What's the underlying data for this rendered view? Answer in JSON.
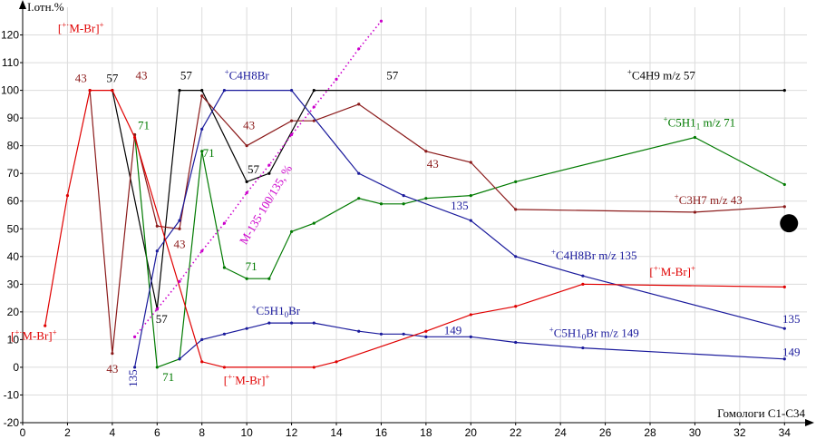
{
  "chart_data": {
    "type": "line",
    "ylabel": "I.отн.%",
    "xlabel": "Гомологи C1-C34",
    "xlim": [
      0,
      35
    ],
    "ylim": [
      -20,
      130
    ],
    "xticks": [
      0,
      2,
      4,
      6,
      8,
      10,
      12,
      14,
      16,
      18,
      20,
      22,
      24,
      26,
      28,
      30,
      32,
      34
    ],
    "yticks": [
      -20,
      -10,
      0,
      10,
      20,
      30,
      40,
      50,
      60,
      70,
      80,
      90,
      100,
      110,
      120
    ],
    "grid": true,
    "series": [
      {
        "name": "C4H9 m/z 57",
        "color": "#000000",
        "points": [
          [
            4,
            100
          ],
          [
            6,
            21
          ],
          [
            7,
            100
          ],
          [
            8,
            100
          ],
          [
            10,
            67
          ],
          [
            11,
            70
          ],
          [
            13,
            100
          ],
          [
            34,
            100
          ]
        ]
      },
      {
        "name": "C5H11 m/z 71",
        "color": "#007a00",
        "points": [
          [
            5,
            84
          ],
          [
            6,
            0
          ],
          [
            7,
            3
          ],
          [
            8,
            78
          ],
          [
            9,
            36
          ],
          [
            10,
            32
          ],
          [
            11,
            32
          ],
          [
            12,
            49
          ],
          [
            13,
            52
          ],
          [
            15,
            61
          ],
          [
            16,
            59
          ],
          [
            17,
            59
          ],
          [
            18,
            61
          ],
          [
            20,
            62
          ],
          [
            22,
            67
          ],
          [
            30,
            83
          ],
          [
            34,
            66
          ]
        ]
      },
      {
        "name": "C3H7 m/z 43",
        "color": "#8b1a1a",
        "points": [
          [
            3,
            100
          ],
          [
            4,
            5
          ],
          [
            5,
            84
          ],
          [
            6,
            51
          ],
          [
            7,
            50
          ],
          [
            8,
            98
          ],
          [
            10,
            80
          ],
          [
            12,
            89
          ],
          [
            13,
            89
          ],
          [
            15,
            95
          ],
          [
            18,
            78
          ],
          [
            20,
            74
          ],
          [
            22,
            57
          ],
          [
            30,
            56
          ],
          [
            34,
            58
          ]
        ]
      },
      {
        "name": "C4H8Br m/z 135",
        "color": "#1a1a9c",
        "points": [
          [
            5,
            0
          ],
          [
            6,
            42
          ],
          [
            7,
            53
          ],
          [
            8,
            86
          ],
          [
            9,
            100
          ],
          [
            12,
            100
          ],
          [
            15,
            70
          ],
          [
            17,
            62
          ],
          [
            20,
            53
          ],
          [
            22,
            40
          ],
          [
            25,
            33
          ],
          [
            34,
            14
          ]
        ]
      },
      {
        "name": "C5H10Br m/z 149",
        "color": "#1a1a9c",
        "points": [
          [
            7,
            3
          ],
          [
            8,
            10
          ],
          [
            9,
            12
          ],
          [
            10,
            14
          ],
          [
            11,
            16
          ],
          [
            12,
            16
          ],
          [
            13,
            16
          ],
          [
            15,
            13
          ],
          [
            16,
            12
          ],
          [
            17,
            12
          ],
          [
            18,
            11
          ],
          [
            20,
            11
          ],
          [
            22,
            9
          ],
          [
            25,
            7
          ],
          [
            34,
            3
          ]
        ]
      },
      {
        "name": "[M-Br]+",
        "color": "#e00000",
        "points": [
          [
            1,
            15
          ],
          [
            2,
            62
          ],
          [
            3,
            100
          ],
          [
            4,
            100
          ],
          [
            5,
            83
          ],
          [
            8,
            2
          ],
          [
            9,
            0
          ],
          [
            13,
            0
          ],
          [
            14,
            2
          ],
          [
            18,
            13
          ],
          [
            20,
            19
          ],
          [
            22,
            22
          ],
          [
            25,
            30
          ],
          [
            34,
            29
          ]
        ]
      },
      {
        "name": "M-135·100/135, %",
        "color": "#cc00cc",
        "dashed": true,
        "points": [
          [
            5,
            11
          ],
          [
            6,
            21
          ],
          [
            7,
            31
          ],
          [
            8,
            42
          ],
          [
            9,
            52
          ],
          [
            10,
            63
          ],
          [
            11,
            73
          ],
          [
            12,
            84
          ],
          [
            13,
            94
          ],
          [
            14,
            104
          ],
          [
            15,
            115
          ],
          [
            16,
            125
          ]
        ]
      }
    ],
    "annotations": [
      {
        "text": "[+·M-Br]+",
        "color": "#e00000",
        "x": 2.6,
        "y": 121
      },
      {
        "text": "43",
        "color": "#8b1a1a",
        "x": 2.6,
        "y": 103
      },
      {
        "text": "57",
        "color": "#000000",
        "x": 4.0,
        "y": 103
      },
      {
        "text": "43",
        "color": "#8b1a1a",
        "x": 5.3,
        "y": 104
      },
      {
        "text": "57",
        "color": "#000000",
        "x": 7.3,
        "y": 104
      },
      {
        "text": "+C4H8Br",
        "color": "#1a1a9c",
        "x": 10.0,
        "y": 104
      },
      {
        "text": "57",
        "color": "#000000",
        "x": 16.5,
        "y": 104
      },
      {
        "text": "+C4H9 m/z 57",
        "color": "#000000",
        "x": 28.5,
        "y": 104
      },
      {
        "text": "71",
        "color": "#007a00",
        "x": 5.4,
        "y": 86
      },
      {
        "text": "43",
        "color": "#8b1a1a",
        "x": 10.1,
        "y": 86
      },
      {
        "text": "71",
        "color": "#007a00",
        "x": 8.3,
        "y": 76
      },
      {
        "text": "57",
        "color": "#000000",
        "x": 10.3,
        "y": 70
      },
      {
        "text": "43",
        "color": "#8b1a1a",
        "x": 18.3,
        "y": 72
      },
      {
        "text": "+C5H11 m/z 71",
        "color": "#007a00",
        "x": 30.2,
        "y": 87
      },
      {
        "text": "+C3H7 m/z 43",
        "color": "#8b1a1a",
        "x": 30.6,
        "y": 59
      },
      {
        "text": "43",
        "color": "#8b1a1a",
        "x": 7.0,
        "y": 43
      },
      {
        "text": "135",
        "color": "#1a1a9c",
        "x": 19.5,
        "y": 57
      },
      {
        "text": "71",
        "color": "#007a00",
        "x": 10.2,
        "y": 35
      },
      {
        "text": "+C4H8Br m/z 135",
        "color": "#1a1a9c",
        "x": 25.5,
        "y": 39
      },
      {
        "text": "[+·M-Br]+",
        "color": "#e00000",
        "x": 29.0,
        "y": 33
      },
      {
        "text": "57",
        "color": "#000000",
        "x": 6.2,
        "y": 16
      },
      {
        "text": "+C5H10Br",
        "color": "#1a1a9c",
        "x": 11.3,
        "y": 19
      },
      {
        "text": "149",
        "color": "#1a1a9c",
        "x": 19.2,
        "y": 12
      },
      {
        "text": "+C5H10Br m/z 149",
        "color": "#1a1a9c",
        "x": 25.5,
        "y": 11
      },
      {
        "text": "135",
        "color": "#1a1a9c",
        "x": 34.3,
        "y": 16
      },
      {
        "text": "149",
        "color": "#1a1a9c",
        "x": 34.3,
        "y": 4
      },
      {
        "text": "[+·M-Br]+",
        "color": "#e00000",
        "x": 0.5,
        "y": 10
      },
      {
        "text": "43",
        "color": "#8b1a1a",
        "x": 4.0,
        "y": -2
      },
      {
        "text": "71",
        "color": "#007a00",
        "x": 6.5,
        "y": -5
      },
      {
        "text": "[+·M-Br]+",
        "color": "#e00000",
        "x": 10.0,
        "y": -6
      }
    ],
    "rotated_annotations": [
      {
        "text": "M-135·100/135, %",
        "color": "#cc00cc",
        "x": 11.0,
        "y": 58,
        "angle": -59
      },
      {
        "text": "135",
        "color": "#1a1a9c",
        "x": 5.1,
        "y": -4,
        "angle": -90
      }
    ],
    "marker": {
      "color": "#000000",
      "x": 34.2,
      "y": 52
    }
  }
}
